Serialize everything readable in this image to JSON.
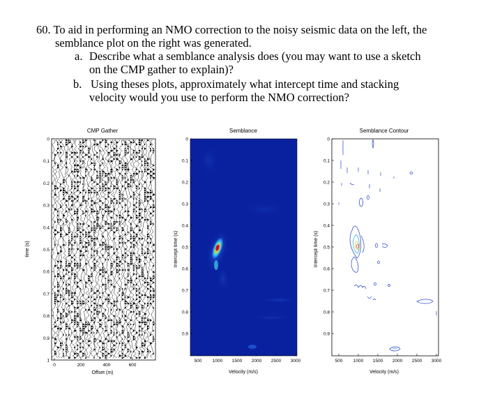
{
  "question": {
    "line1": "60. To aid in performing an NMO correction to the noisy seismic data on the left, the",
    "line2": "semblance plot on the right was generated.",
    "a_marker": "a.",
    "a_line1": "Describe what a semblance analysis does (you may want to use a sketch",
    "a_line2": "on the CMP gather to explain)?",
    "b_marker": "b.",
    "b_line1": "Using theses plots, approximately what intercept time and stacking",
    "b_line2": "velocity would you use to perform the NMO correction?"
  },
  "panels": {
    "cmp": {
      "title": "CMP Gather",
      "ylabel": "time (s)",
      "xlabel": "Offset (m)",
      "yticks": [
        "0",
        "0.1",
        "0.2",
        "0.3",
        "0.4",
        "0.5",
        "0.6",
        "0.7",
        "0.8",
        "0.9",
        "1"
      ],
      "xticks": [
        "0",
        "200",
        "400",
        "600"
      ]
    },
    "semblance": {
      "title": "Semblance",
      "ylabel": "Intercept time (s)",
      "xlabel": "Velocity (m/s)",
      "yticks": [
        "0",
        "0.1",
        "0.2",
        "0.3",
        "0.4",
        "0.5",
        "0.6",
        "0.7",
        "0.8",
        "0.9"
      ],
      "xticks": [
        "500",
        "1000",
        "1500",
        "2000",
        "2500",
        "3000"
      ],
      "colors": {
        "background": "#0a1f9c",
        "peak": "#c8102e"
      }
    },
    "contour": {
      "title": "Semblance Contour",
      "ylabel": "Intercept time (s)",
      "xlabel": "Velocity (m/s)",
      "yticks": [
        "0",
        "0.1",
        "0.2",
        "0.3",
        "0.4",
        "0.5",
        "0.6",
        "0.7",
        "0.8",
        "0.9"
      ],
      "xticks": [
        "500",
        "1000",
        "1500",
        "2000",
        "2500",
        "3000"
      ]
    }
  }
}
